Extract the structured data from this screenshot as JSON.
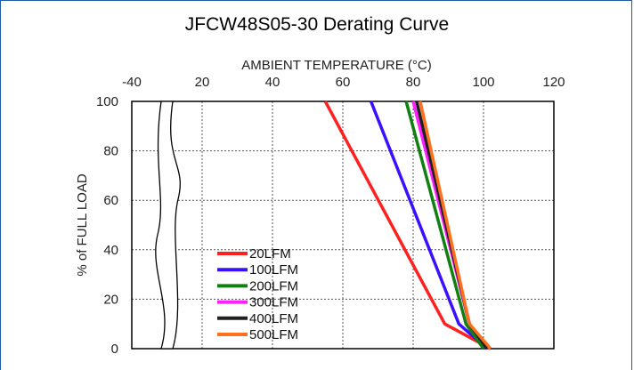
{
  "chart_data": {
    "type": "line",
    "title": "JFCW48S05-30 Derating Curve",
    "xlabel": "AMBIENT TEMPERATURE (°C)",
    "ylabel": "% of FULL LOAD",
    "x_tick_labels": [
      "-40",
      "20",
      "40",
      "60",
      "80",
      "100",
      "120"
    ],
    "x_ticks": [
      20,
      40,
      60,
      80,
      100,
      120
    ],
    "y_ticks": [
      0,
      20,
      40,
      60,
      80,
      100
    ],
    "xlim": [
      20,
      120
    ],
    "ylim": [
      0,
      100
    ],
    "axis_break": true,
    "grid": true,
    "legend_position": "bottom-left",
    "series": [
      {
        "name": "20LFM",
        "color": "#ff2020",
        "x": [
          55,
          89,
          102
        ],
        "y": [
          100,
          10,
          0
        ]
      },
      {
        "name": "100LFM",
        "color": "#3a10ff",
        "x": [
          68,
          93,
          101
        ],
        "y": [
          100,
          10,
          0
        ]
      },
      {
        "name": "200LFM",
        "color": "#108010",
        "x": [
          78,
          95,
          100
        ],
        "y": [
          100,
          10,
          0
        ]
      },
      {
        "name": "300LFM",
        "color": "#ff20ff",
        "x": [
          80,
          96,
          101
        ],
        "y": [
          100,
          10,
          0
        ]
      },
      {
        "name": "400LFM",
        "color": "#202020",
        "x": [
          81,
          96,
          101
        ],
        "y": [
          100,
          10,
          0
        ]
      },
      {
        "name": "500LFM",
        "color": "#ff7020",
        "x": [
          82,
          96,
          102
        ],
        "y": [
          100,
          10,
          0
        ]
      }
    ]
  }
}
